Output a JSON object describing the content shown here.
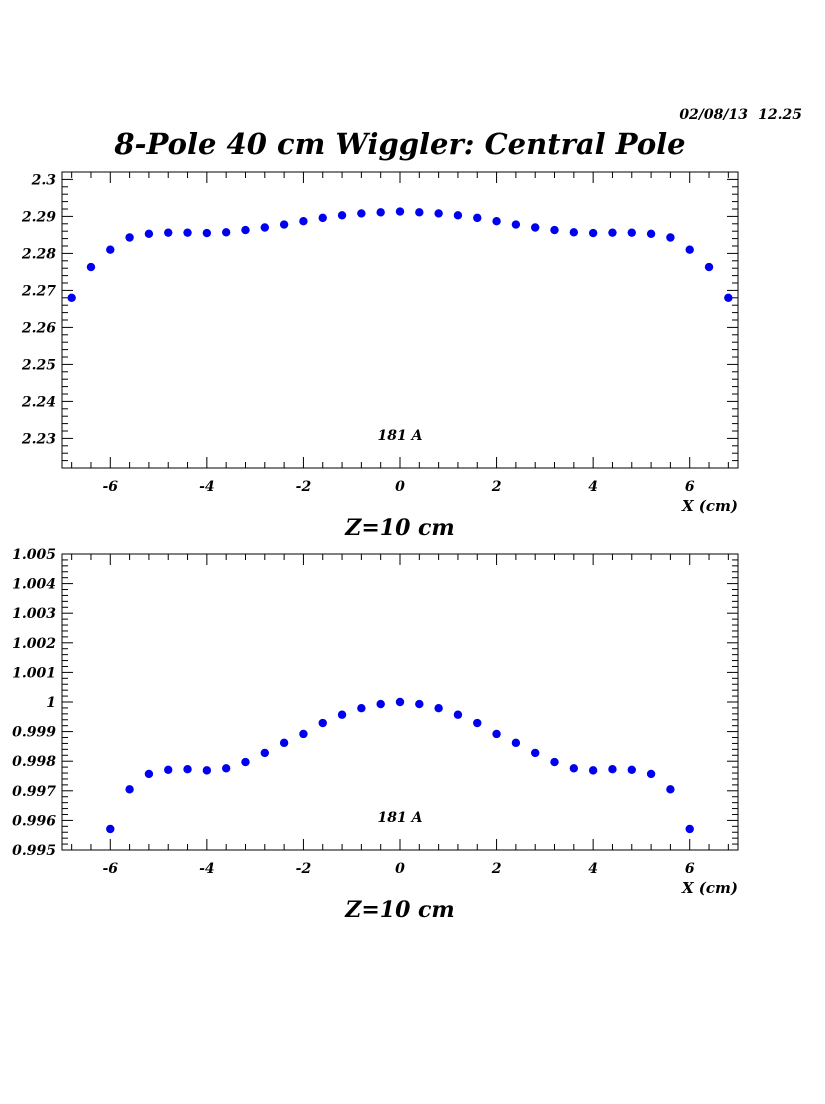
{
  "page": {
    "title": "8-Pole 40 cm Wiggler: Central Pole",
    "date": "02/08/13",
    "time": "12.25"
  },
  "colors": {
    "marker": "#0000ee",
    "axis": "#000000",
    "background": "#ffffff"
  },
  "chart_data": [
    {
      "type": "scatter",
      "subtitle": "Z=10 cm",
      "xlabel": "X (cm)",
      "ylabel": "",
      "annotation": "181 A",
      "xlim": [
        -7.0,
        7.0
      ],
      "ylim": [
        2.222,
        2.302
      ],
      "xticks": [
        -6,
        -4,
        -2,
        0,
        2,
        4,
        6
      ],
      "xtick_labels": [
        "-6",
        "-4",
        "-2",
        "0",
        "2",
        "4",
        "6"
      ],
      "yticks": [
        2.23,
        2.24,
        2.25,
        2.26,
        2.27,
        2.28,
        2.29,
        2.3
      ],
      "ytick_labels": [
        "2.23",
        "2.24",
        "2.25",
        "2.26",
        "2.27",
        "2.28",
        "2.29",
        "2.3"
      ],
      "grid": false,
      "series": [
        {
          "x": [
            -6.8,
            -6.4,
            -6.0,
            -5.6,
            -5.2,
            -4.8,
            -4.4,
            -4.0,
            -3.6,
            -3.2,
            -2.8,
            -2.4,
            -2.0,
            -1.6,
            -1.2,
            -0.8,
            -0.4,
            0.0,
            0.4,
            0.8,
            1.2,
            1.6,
            2.0,
            2.4,
            2.8,
            3.2,
            3.6,
            4.0,
            4.4,
            4.8,
            5.2,
            5.6,
            6.0,
            6.4,
            6.8
          ],
          "y": [
            2.268,
            2.2763,
            2.281,
            2.2843,
            2.2853,
            2.2856,
            2.2856,
            2.2855,
            2.2857,
            2.2863,
            2.287,
            2.2878,
            2.2887,
            2.2896,
            2.2903,
            2.2908,
            2.2911,
            2.2913,
            2.2911,
            2.2908,
            2.2903,
            2.2896,
            2.2887,
            2.2878,
            2.287,
            2.2863,
            2.2857,
            2.2855,
            2.2856,
            2.2856,
            2.2853,
            2.2843,
            2.281,
            2.2763,
            2.268
          ]
        }
      ]
    },
    {
      "type": "scatter",
      "subtitle": "Z=10 cm",
      "xlabel": "X (cm)",
      "ylabel": "",
      "annotation": "181 A",
      "xlim": [
        -7.0,
        7.0
      ],
      "ylim": [
        0.995,
        1.005
      ],
      "xticks": [
        -6,
        -4,
        -2,
        0,
        2,
        4,
        6
      ],
      "xtick_labels": [
        "-6",
        "-4",
        "-2",
        "0",
        "2",
        "4",
        "6"
      ],
      "yticks": [
        0.995,
        0.996,
        0.997,
        0.998,
        0.999,
        1.0,
        1.001,
        1.002,
        1.003,
        1.004,
        1.005
      ],
      "ytick_labels": [
        "0.995",
        "0.996",
        "0.997",
        "0.998",
        "0.999",
        "1",
        "1.001",
        "1.002",
        "1.003",
        "1.004",
        "1.005"
      ],
      "grid": false,
      "series": [
        {
          "x": [
            -6.0,
            -5.6,
            -5.2,
            -4.8,
            -4.4,
            -4.0,
            -3.6,
            -3.2,
            -2.8,
            -2.4,
            -2.0,
            -1.6,
            -1.2,
            -0.8,
            -0.4,
            0.0,
            0.4,
            0.8,
            1.2,
            1.6,
            2.0,
            2.4,
            2.8,
            3.2,
            3.6,
            4.0,
            4.4,
            4.8,
            5.2,
            5.6,
            6.0
          ],
          "y": [
            0.99571,
            0.99705,
            0.99757,
            0.99771,
            0.99773,
            0.99769,
            0.99776,
            0.99797,
            0.99828,
            0.99862,
            0.99892,
            0.99929,
            0.99957,
            0.99979,
            0.99993,
            1.0,
            0.99993,
            0.99979,
            0.99957,
            0.99929,
            0.99892,
            0.99862,
            0.99828,
            0.99797,
            0.99776,
            0.99769,
            0.99773,
            0.99771,
            0.99757,
            0.99705,
            0.99571
          ]
        }
      ]
    }
  ]
}
